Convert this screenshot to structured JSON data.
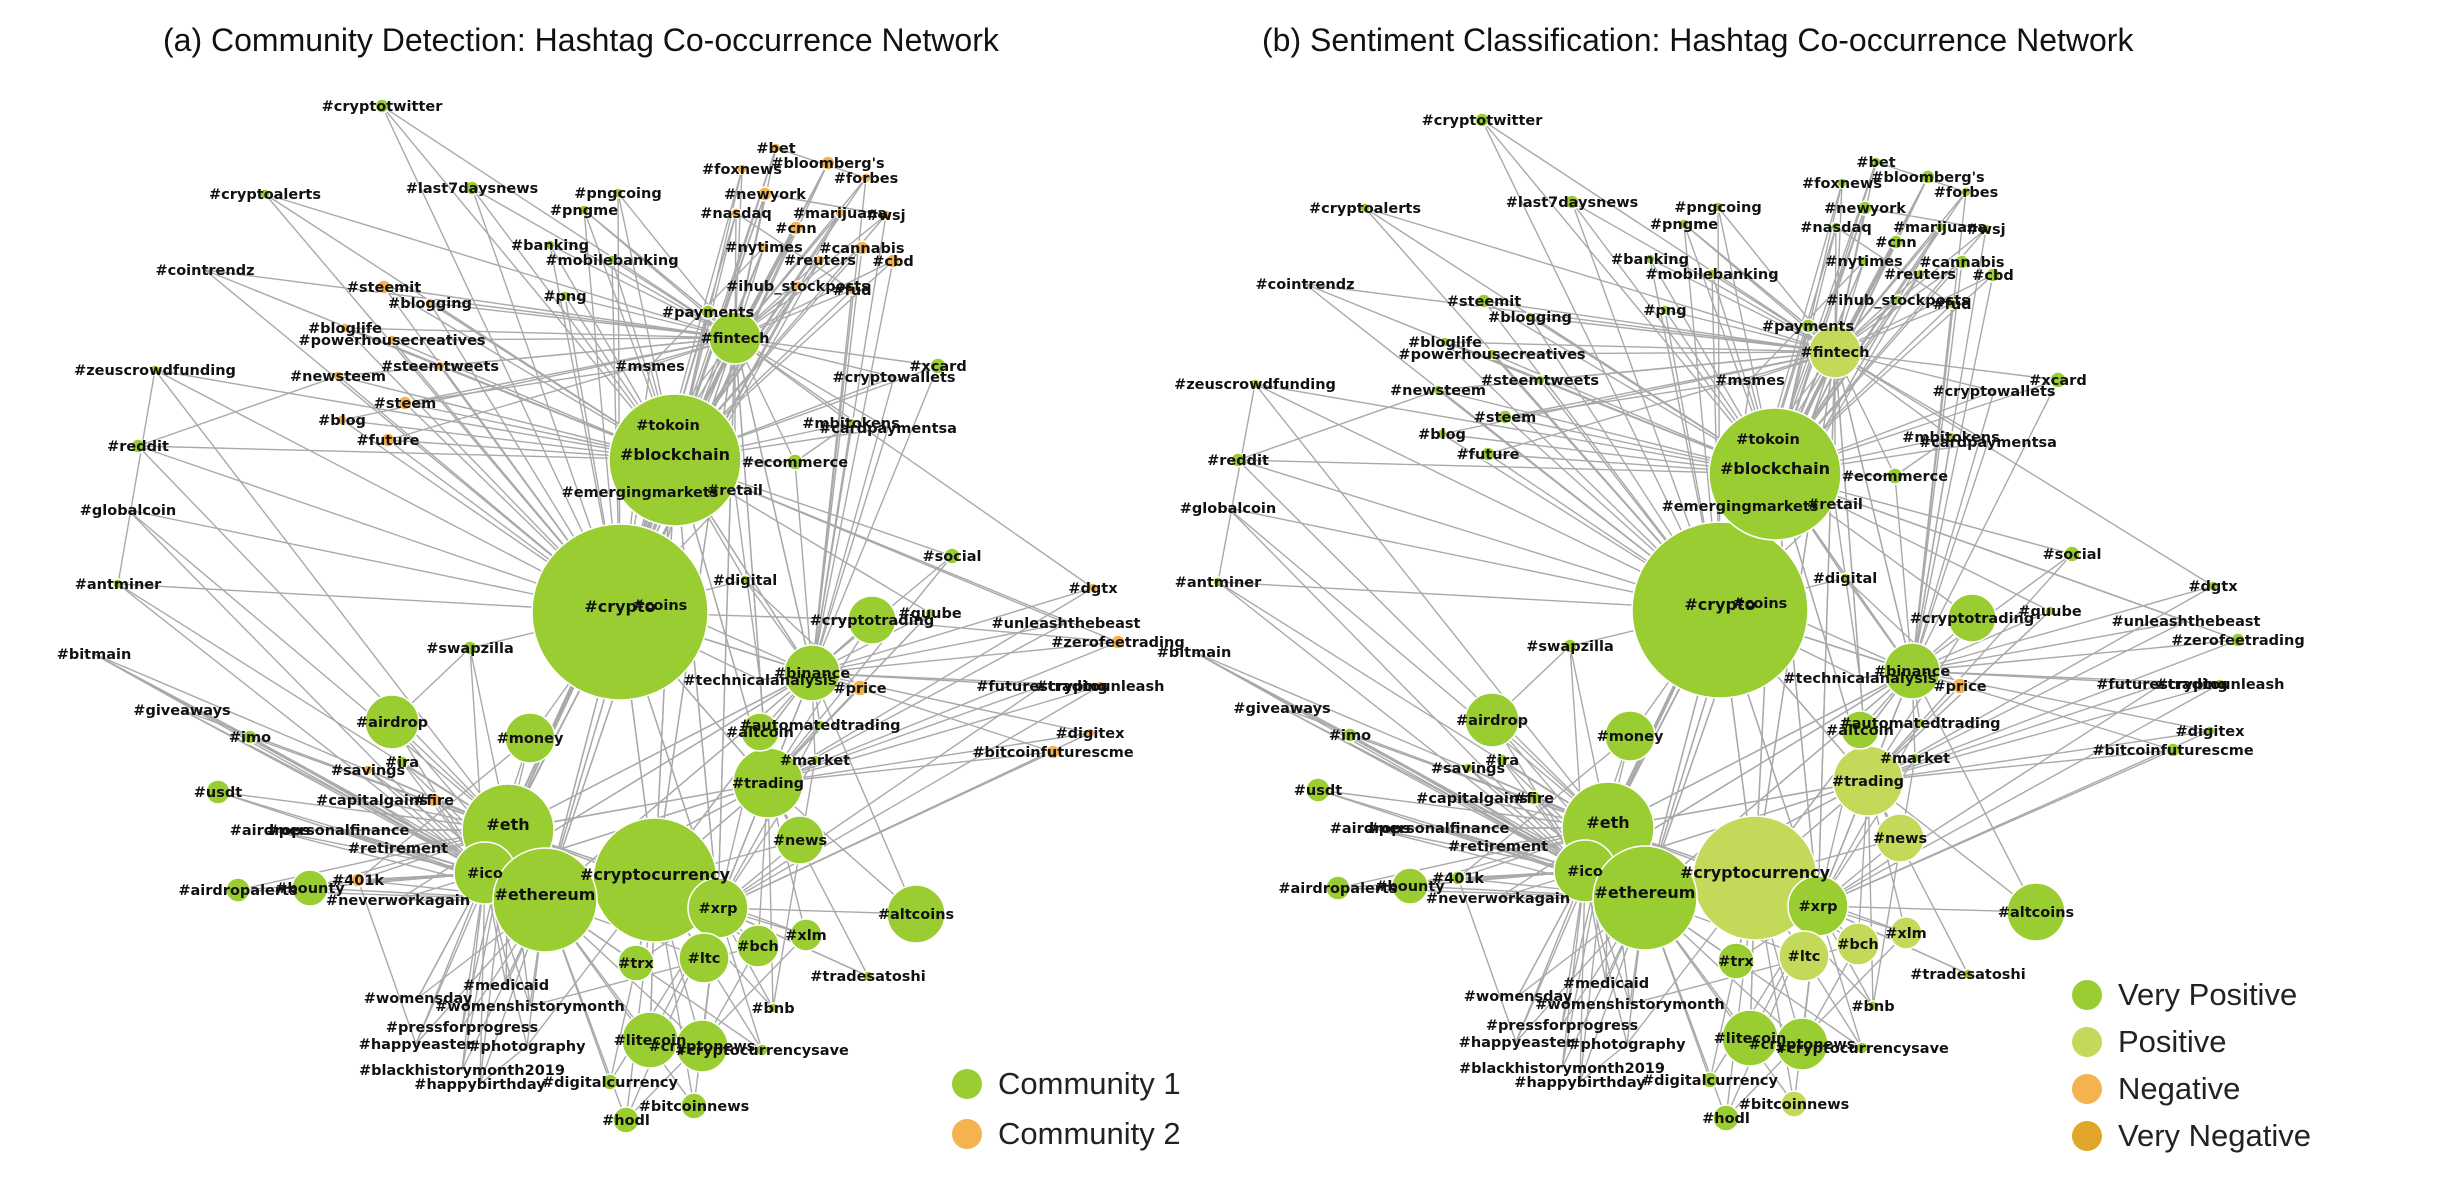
{
  "panels": [
    {
      "title": "(a) Community Detection: Hashtag Co-occurrence Network"
    },
    {
      "title": "(b) Sentiment Classification: Hashtag Co-occurrence Network"
    }
  ],
  "legend_a": [
    {
      "label": "Community 1",
      "color": "#9acd32"
    },
    {
      "label": "Community 2",
      "color": "#f4b350"
    }
  ],
  "legend_b": [
    {
      "label": "Very Positive",
      "color": "#9acd32"
    },
    {
      "label": "Positive",
      "color": "#c3d95a"
    },
    {
      "label": "Negative",
      "color": "#f4b350"
    },
    {
      "label": "Very Negative",
      "color": "#dfa62a"
    }
  ],
  "colors": {
    "edge": "#a9a9a9",
    "community_1": "#9acd32",
    "community_2": "#f4b350",
    "very_positive": "#9acd32",
    "positive": "#c3d95a",
    "negative": "#f4b350",
    "very_negative": "#dfa62a"
  },
  "hashtags": [
    "#crypto",
    "#coins",
    "#cryptocurrency",
    "#blockchain",
    "#tokoin",
    "#emergingmarkets",
    "#retail",
    "#ecommerce",
    "#fintech",
    "#payments",
    "#eth",
    "#ico",
    "#ethereum",
    "#xrp",
    "#ltc",
    "#bch",
    "#trx",
    "#litecoin",
    "#cryptonews",
    "#xlm",
    "#bnb",
    "#altcoins",
    "#hodl",
    "#bitcoinnews",
    "#digitalcurrency",
    "#cryptocurrencysave",
    "#tradesatoshi",
    "#trading",
    "#news",
    "#market",
    "#altcoin",
    "#automatedtrading",
    "#binance",
    "#technicalanalysis",
    "#price",
    "#cryptotrading",
    "#quube",
    "#digital",
    "#social",
    "#money",
    "#airdrop",
    "#ira",
    "#savings",
    "#capitalgains",
    "#fire",
    "#personalfinance",
    "#airdrops",
    "#retirement",
    "#401k",
    "#neverworkagain",
    "#bounty",
    "#airdropalerts",
    "#usdt",
    "#imo",
    "#giveaways",
    "#swapzilla",
    "#bitmain",
    "#antminer",
    "#globalcoin",
    "#reddit",
    "#zeuscrowdfunding",
    "#cointrendz",
    "#cryptoalerts",
    "#cryptotwitter",
    "#last7daysnews",
    "#pngcoing",
    "#pngme",
    "#banking",
    "#mobilebanking",
    "#png",
    "#steemit",
    "#blogging",
    "#bloglife",
    "#powerhousecreatives",
    "#newsteem",
    "#steemtweets",
    "#steem",
    "#blog",
    "#future",
    "#msmes",
    "#xcard",
    "#cryptowallets",
    "#mbitokens",
    "#cardpaymentsa",
    "#dgtx",
    "#unleashthebeast",
    "#zerofeetrading",
    "#futurestrading",
    "#cryptounleash",
    "#digitex",
    "#bitcoinfuturescme",
    "#bet",
    "#bloomberg's",
    "#foxnews",
    "#forbes",
    "#newyork",
    "#nasdaq",
    "#marijuana",
    "#wsj",
    "#cnn",
    "#nytimes",
    "#cannabis",
    "#reuters",
    "#cbd",
    "#ihub_stockposts",
    "#fud",
    "#medicaid",
    "#womensday",
    "#womenshistorymonth",
    "#pressforprogress",
    "#photography",
    "#happyeaster",
    "#blackhistorymonth2019",
    "#happybirthday"
  ]
}
